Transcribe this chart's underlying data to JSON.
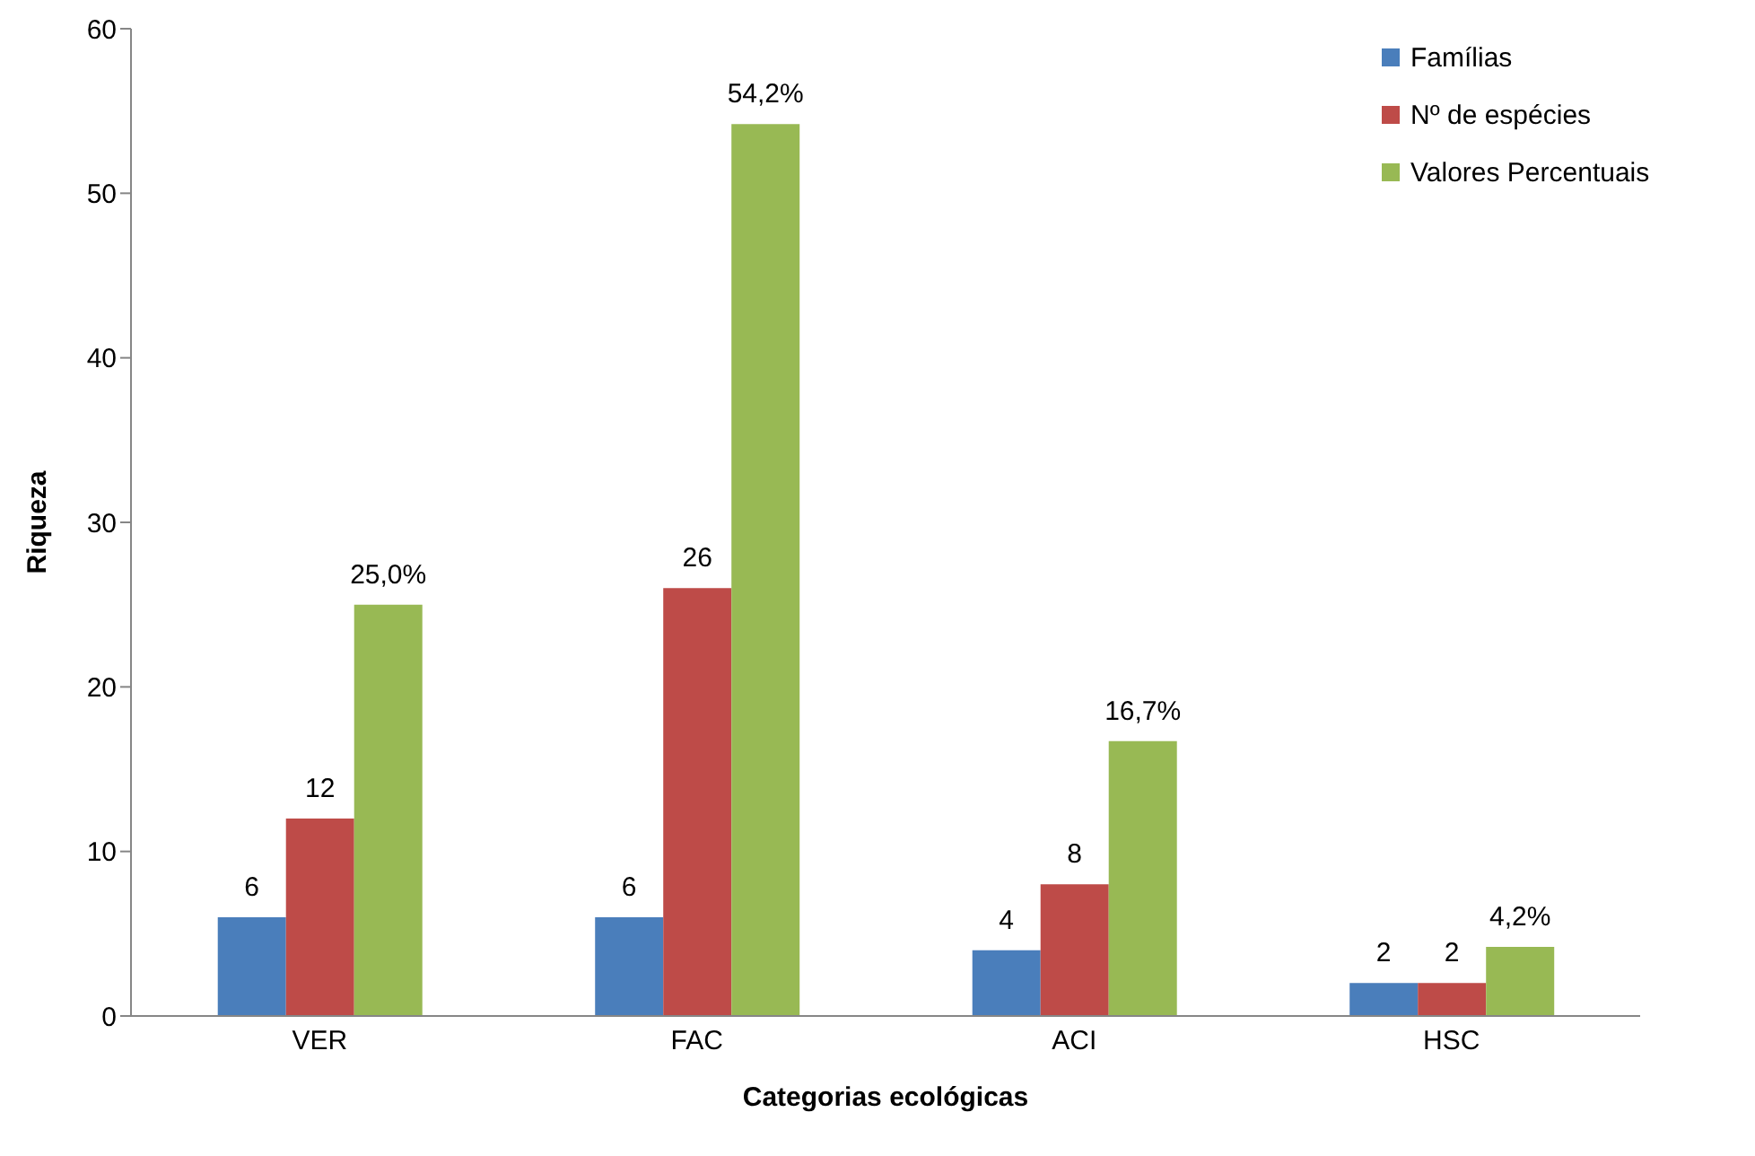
{
  "chart_data": {
    "type": "bar",
    "xlabel": "Categorias ecológicas",
    "ylabel": "Riqueza",
    "categories": [
      "VER",
      "FAC",
      "ACI",
      "HSC"
    ],
    "series": [
      {
        "name": "Famílias",
        "color": "#4a7ebb",
        "values": [
          6,
          6,
          4,
          2
        ],
        "value_labels": [
          "6",
          "6",
          "4",
          "2"
        ]
      },
      {
        "name": "Nº de espécies",
        "color": "#be4b48",
        "values": [
          12,
          26,
          8,
          2
        ],
        "value_labels": [
          "12",
          "26",
          "8",
          "2"
        ]
      },
      {
        "name": "Valores Percentuais",
        "color": "#98b954",
        "values": [
          25.0,
          54.2,
          16.7,
          4.2
        ],
        "value_labels": [
          "25,0%",
          "54,2%",
          "16,7%",
          "4,2%"
        ]
      }
    ],
    "ylim": [
      0,
      60
    ],
    "yticks": [
      0,
      10,
      20,
      30,
      40,
      50,
      60
    ],
    "grid": false,
    "legend": "top right"
  }
}
